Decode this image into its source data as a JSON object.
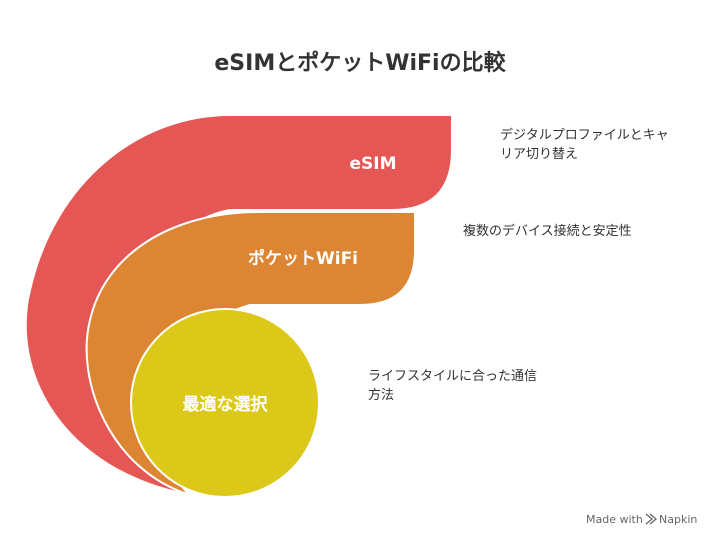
{
  "header": {
    "title": "eSIMとポケットWiFiの比較"
  },
  "layers": [
    {
      "label": "eSIM",
      "description": [
        "デジタルプロファイルとキャ",
        "リア切り替え"
      ]
    },
    {
      "label": "ポケットWiFi",
      "description": [
        "複数のデバイス接続と安定性"
      ]
    },
    {
      "label": "最適な選択",
      "description": [
        "ライフスタイルに合った通信",
        "方法"
      ]
    }
  ],
  "footer": {
    "made_with": "Made with",
    "brand": "Napkin"
  }
}
